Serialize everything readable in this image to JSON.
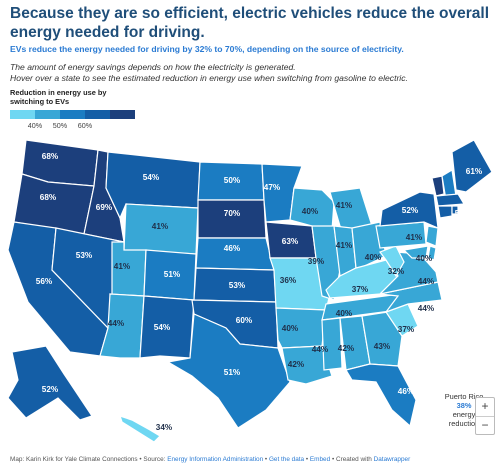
{
  "title": "Because they are so efficient, electric vehicles reduce the overall energy needed for driving.",
  "subtitle": "EVs reduce the energy needed for driving by 32% to 70%, depending on the source of electricity.",
  "description": [
    "The amount of energy savings depends on how the electricity is generated.",
    "Hover over a state to see the estimated reduction in energy use when switching from gasoline to electric."
  ],
  "legend": {
    "title": "Reduction in energy use by switching to EVs",
    "ticks": [
      "40%",
      "50%",
      "60%"
    ],
    "colors": [
      "#6fd7f2",
      "#38a7d6",
      "#1b7cc2",
      "#145ea6",
      "#1c3f7c"
    ]
  },
  "map_data": {
    "unit": "%",
    "states": [
      {
        "id": "WA",
        "value": 68,
        "label": "68%"
      },
      {
        "id": "OR",
        "value": 68,
        "label": "68%"
      },
      {
        "id": "CA",
        "value": 56,
        "label": "56%"
      },
      {
        "id": "ID",
        "value": 69,
        "label": "69%"
      },
      {
        "id": "NV",
        "value": 53,
        "label": "53%"
      },
      {
        "id": "MT",
        "value": 54,
        "label": "54%"
      },
      {
        "id": "WY",
        "value": 41,
        "label": "41%"
      },
      {
        "id": "UT",
        "value": 41,
        "label": "41%"
      },
      {
        "id": "AZ",
        "value": 44,
        "label": "44%"
      },
      {
        "id": "CO",
        "value": 51,
        "label": "51%"
      },
      {
        "id": "NM",
        "value": 54,
        "label": "54%"
      },
      {
        "id": "ND",
        "value": 50,
        "label": "50%"
      },
      {
        "id": "SD",
        "value": 70,
        "label": "70%"
      },
      {
        "id": "NE",
        "value": 46,
        "label": "46%"
      },
      {
        "id": "KS",
        "value": 53,
        "label": "53%"
      },
      {
        "id": "OK",
        "value": 60,
        "label": "60%"
      },
      {
        "id": "TX",
        "value": 51,
        "label": "51%"
      },
      {
        "id": "MN",
        "value": 47,
        "label": "47%"
      },
      {
        "id": "IA",
        "value": 63,
        "label": "63%"
      },
      {
        "id": "MO",
        "value": 36,
        "label": "36%"
      },
      {
        "id": "AR",
        "value": 40,
        "label": "40%"
      },
      {
        "id": "LA",
        "value": 42,
        "label": "42%"
      },
      {
        "id": "WI",
        "value": 40,
        "label": "40%"
      },
      {
        "id": "IL",
        "value": 39,
        "label": "39%"
      },
      {
        "id": "MI",
        "value": 41,
        "label": "41%"
      },
      {
        "id": "IN",
        "value": 41,
        "label": "41%"
      },
      {
        "id": "OH",
        "value": 40,
        "label": "40%"
      },
      {
        "id": "KY",
        "value": 37,
        "label": "37%"
      },
      {
        "id": "TN",
        "value": 40,
        "label": "40%"
      },
      {
        "id": "MS",
        "value": 44,
        "label": "44%"
      },
      {
        "id": "AL",
        "value": 42,
        "label": "42%"
      },
      {
        "id": "GA",
        "value": 43,
        "label": "43%"
      },
      {
        "id": "FL",
        "value": 46,
        "label": "46%"
      },
      {
        "id": "SC",
        "value": 37,
        "label": "37%"
      },
      {
        "id": "NC",
        "value": 44,
        "label": "44%"
      },
      {
        "id": "VA",
        "value": 44,
        "label": "44%"
      },
      {
        "id": "WV",
        "value": 32,
        "label": "32%"
      },
      {
        "id": "PA",
        "value": 41,
        "label": "41%"
      },
      {
        "id": "NY",
        "value": 52,
        "label": "52%"
      },
      {
        "id": "DE",
        "value": 40,
        "label": "40%"
      },
      {
        "id": "VT",
        "value": 67,
        "label": "67%"
      },
      {
        "id": "NH",
        "value": 50,
        "label": "50%"
      },
      {
        "id": "ME",
        "value": 61,
        "label": "61%"
      },
      {
        "id": "AK",
        "value": 52,
        "label": "52%"
      },
      {
        "id": "HI",
        "value": 34,
        "label": "34%"
      },
      {
        "id": "MD",
        "value": 40
      },
      {
        "id": "NJ",
        "value": 40
      },
      {
        "id": "MA",
        "value": 52
      },
      {
        "id": "CT",
        "value": 52
      },
      {
        "id": "RI",
        "value": 52
      }
    ]
  },
  "puerto_rico": {
    "name": "Puerto Rico",
    "value": "38%",
    "suffix": "energy reduction"
  },
  "zoom": {
    "in": "+",
    "out": "−"
  },
  "footer": {
    "credit": "Map: Karin Kirk for Yale Climate Connections • Source: ",
    "source_link": "Energy Information Administration",
    "sep1": " • ",
    "get_data": "Get the data",
    "sep2": " • ",
    "embed": "Embed",
    "sep3": " • Created with ",
    "tool": "Datawrapper"
  }
}
